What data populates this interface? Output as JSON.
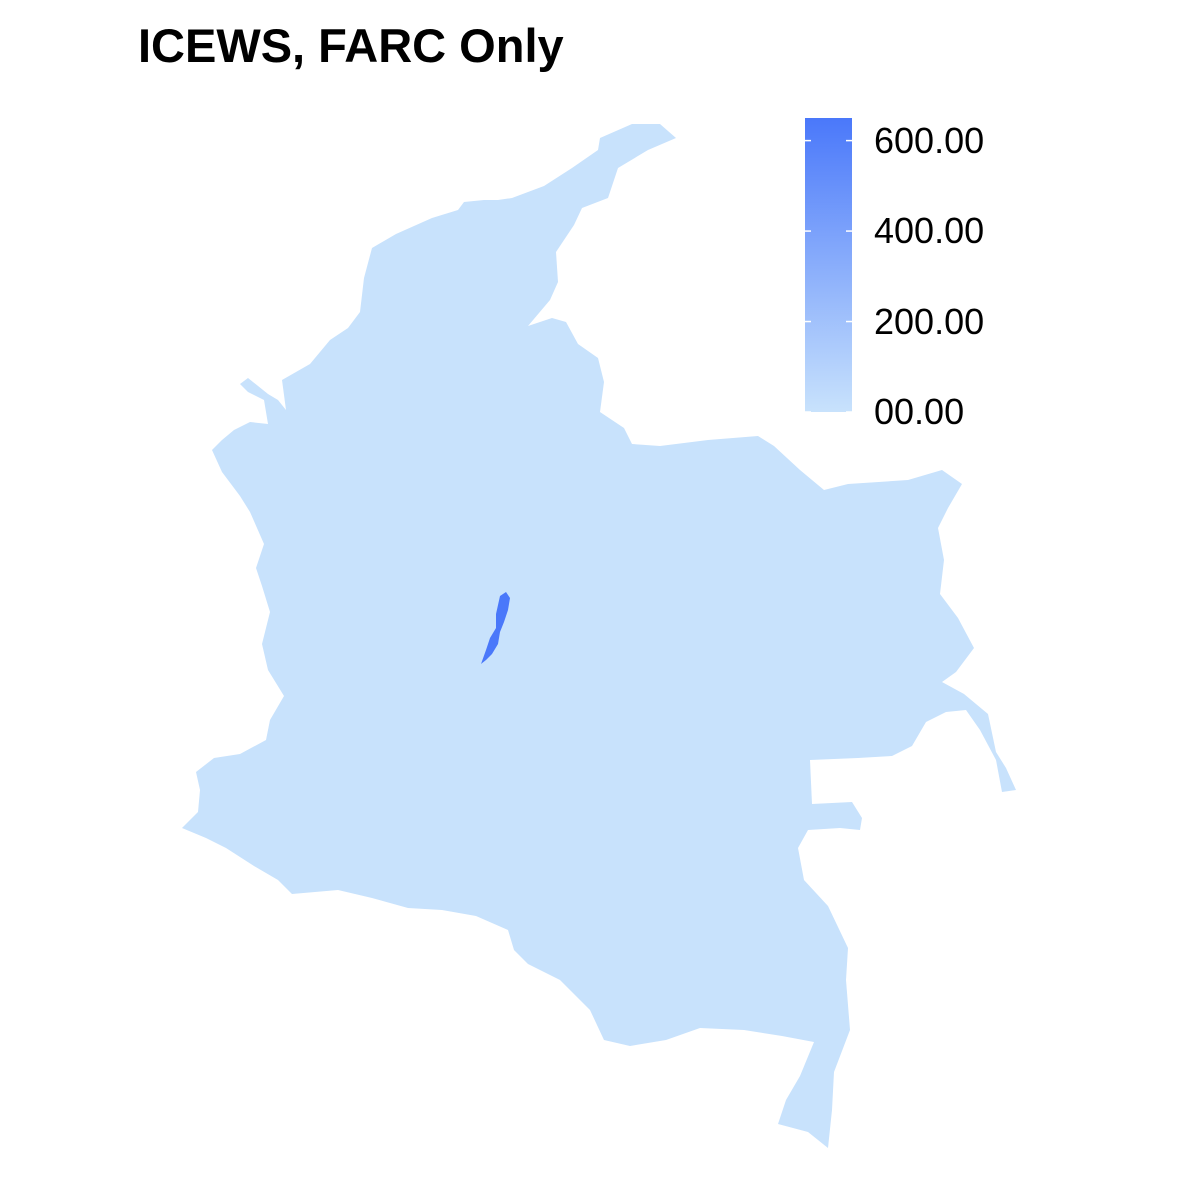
{
  "title": "ICEWS, FARC Only",
  "colors": {
    "low": "#C8E2FC",
    "high": "#4A78FA",
    "background": "#FFFFFF",
    "text": "#000000"
  },
  "legend": {
    "type": "continuous-colorbar",
    "placement": "top-right",
    "min": 0,
    "max": 650,
    "ticks": [
      {
        "value": 0,
        "label": "00.00"
      },
      {
        "value": 200,
        "label": "200.00"
      },
      {
        "value": 400,
        "label": "400.00"
      },
      {
        "value": 600,
        "label": "600.00"
      }
    ]
  },
  "regions": [
    {
      "name": "colombia-departments",
      "value": 0
    },
    {
      "name": "highlighted-district",
      "value": 650
    }
  ]
}
